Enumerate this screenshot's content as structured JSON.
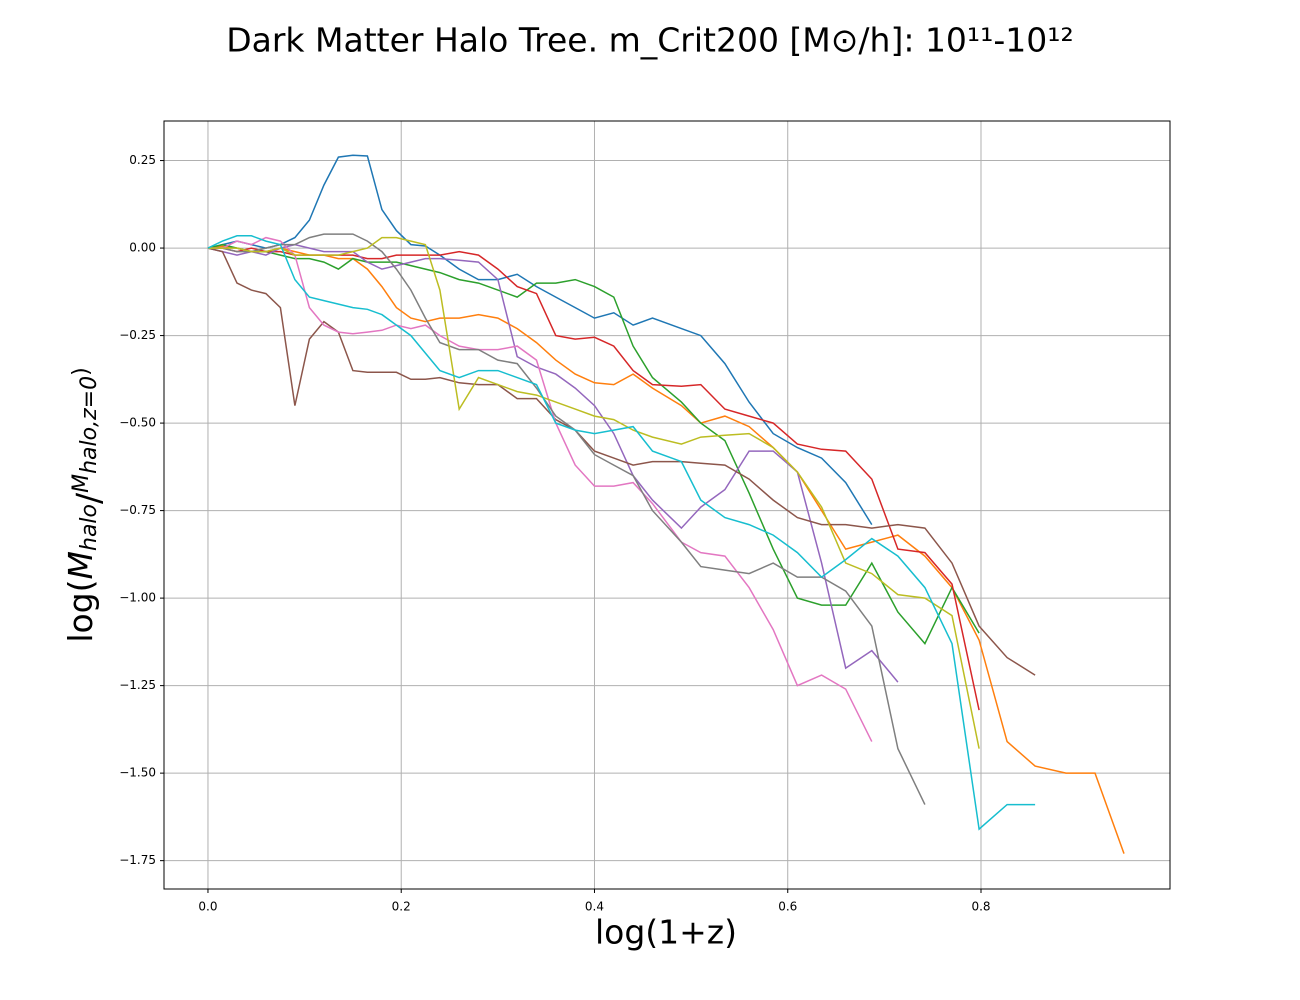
{
  "chart_data": {
    "type": "line",
    "title": "Dark Matter Halo Tree. m_Crit200 [M⊙/h]: 10¹¹-10¹²",
    "xlabel": "log(1+z)",
    "ylabel": "log(M_halo/M_halo,z=0)",
    "x": [
      0,
      0.015,
      0.03,
      0.045,
      0.06,
      0.075,
      0.09,
      0.105,
      0.12,
      0.135,
      0.15,
      0.165,
      0.18,
      0.195,
      0.21,
      0.225,
      0.24,
      0.26,
      0.28,
      0.3,
      0.32,
      0.34,
      0.36,
      0.38,
      0.4,
      0.42,
      0.44,
      0.46,
      0.49,
      0.51,
      0.535,
      0.56,
      0.585,
      0.61,
      0.635,
      0.66,
      0.687,
      0.714,
      0.742,
      0.77,
      0.798,
      0.827,
      0.856,
      0.888,
      0.918,
      0.948
    ],
    "series": [
      {
        "color": "#1f77b4",
        "values": [
          0,
          0.01,
          0.02,
          0.01,
          0,
          0.01,
          0.03,
          0.08,
          0.18,
          0.26,
          0.265,
          0.263,
          0.11,
          0.05,
          0.01,
          0.006,
          -0.02,
          -0.06,
          -0.09,
          -0.09,
          -0.075,
          -0.11,
          -0.14,
          -0.17,
          -0.2,
          -0.185,
          -0.22,
          -0.2,
          -0.23,
          -0.25,
          -0.33,
          -0.44,
          -0.53,
          -0.57,
          -0.6,
          -0.67,
          -0.79,
          null,
          null,
          null,
          null,
          null,
          null,
          null,
          null,
          null
        ]
      },
      {
        "color": "#ff7f0e",
        "values": [
          0,
          0.005,
          0,
          -0.01,
          -0.01,
          0,
          -0.01,
          -0.02,
          -0.02,
          -0.03,
          -0.03,
          -0.06,
          -0.11,
          -0.17,
          -0.2,
          -0.21,
          -0.2,
          -0.2,
          -0.19,
          -0.2,
          -0.23,
          -0.27,
          -0.32,
          -0.36,
          -0.385,
          -0.39,
          -0.36,
          -0.4,
          -0.45,
          -0.5,
          -0.48,
          -0.51,
          -0.57,
          -0.64,
          -0.75,
          -0.86,
          -0.84,
          -0.82,
          -0.88,
          -0.97,
          -1.12,
          -1.41,
          -1.48,
          -1.5,
          -1.5,
          -1.73
        ]
      },
      {
        "color": "#2ca02c",
        "values": [
          0,
          0.01,
          0,
          -0.01,
          -0.01,
          -0.02,
          -0.03,
          -0.03,
          -0.04,
          -0.06,
          -0.03,
          -0.04,
          -0.04,
          -0.04,
          -0.05,
          -0.06,
          -0.07,
          -0.09,
          -0.1,
          -0.12,
          -0.14,
          -0.1,
          -0.1,
          -0.09,
          -0.11,
          -0.14,
          -0.28,
          -0.37,
          -0.44,
          -0.5,
          -0.55,
          -0.7,
          -0.86,
          -1.0,
          -1.02,
          -1.02,
          -0.9,
          -1.04,
          -1.13,
          -0.97,
          -1.1,
          null,
          null,
          null,
          null,
          null
        ]
      },
      {
        "color": "#d62728",
        "values": [
          0,
          0,
          -0.01,
          0,
          -0.01,
          -0.01,
          -0.02,
          -0.02,
          -0.02,
          -0.02,
          -0.02,
          -0.03,
          -0.03,
          -0.02,
          -0.02,
          -0.02,
          -0.02,
          -0.01,
          -0.02,
          -0.06,
          -0.11,
          -0.13,
          -0.25,
          -0.26,
          -0.255,
          -0.28,
          -0.35,
          -0.39,
          -0.395,
          -0.39,
          -0.46,
          -0.48,
          -0.5,
          -0.56,
          -0.575,
          -0.58,
          -0.66,
          -0.86,
          -0.87,
          -0.96,
          -1.32,
          null,
          null,
          null,
          null,
          null
        ]
      },
      {
        "color": "#9467bd",
        "values": [
          0,
          -0.01,
          -0.02,
          -0.01,
          -0.02,
          0,
          0.01,
          0,
          -0.01,
          -0.01,
          -0.01,
          -0.04,
          -0.06,
          -0.05,
          -0.04,
          -0.03,
          -0.03,
          -0.035,
          -0.04,
          -0.09,
          -0.31,
          -0.34,
          -0.36,
          -0.4,
          -0.45,
          -0.53,
          -0.65,
          -0.72,
          -0.8,
          -0.74,
          -0.69,
          -0.58,
          -0.58,
          -0.64,
          -0.9,
          -1.2,
          -1.15,
          -1.24,
          null,
          null,
          null,
          null,
          null,
          null,
          null,
          null
        ]
      },
      {
        "color": "#8c564b",
        "values": [
          0,
          -0.01,
          -0.1,
          -0.12,
          -0.13,
          -0.17,
          -0.45,
          -0.26,
          -0.21,
          -0.24,
          -0.35,
          -0.355,
          -0.355,
          -0.355,
          -0.375,
          -0.375,
          -0.37,
          -0.385,
          -0.39,
          -0.39,
          -0.43,
          -0.43,
          -0.49,
          -0.52,
          -0.58,
          -0.6,
          -0.62,
          -0.61,
          -0.61,
          -0.615,
          -0.62,
          -0.66,
          -0.72,
          -0.77,
          -0.79,
          -0.79,
          -0.8,
          -0.79,
          -0.8,
          -0.9,
          -1.08,
          -1.17,
          -1.22,
          null,
          null,
          null
        ]
      },
      {
        "color": "#e377c2",
        "values": [
          0,
          0,
          0.02,
          0.01,
          0.03,
          0.02,
          -0.02,
          -0.17,
          -0.22,
          -0.24,
          -0.245,
          -0.24,
          -0.235,
          -0.22,
          -0.23,
          -0.22,
          -0.25,
          -0.28,
          -0.29,
          -0.29,
          -0.28,
          -0.32,
          -0.5,
          -0.62,
          -0.68,
          -0.68,
          -0.67,
          -0.73,
          -0.84,
          -0.87,
          -0.88,
          -0.97,
          -1.09,
          -1.25,
          -1.22,
          -1.26,
          -1.41,
          null,
          null,
          null,
          null,
          null,
          null,
          null,
          null,
          null
        ]
      },
      {
        "color": "#7f7f7f",
        "values": [
          0,
          0,
          -0.01,
          -0.01,
          0,
          0.01,
          0.01,
          0.03,
          0.04,
          0.04,
          0.04,
          0.02,
          -0.01,
          -0.06,
          -0.12,
          -0.2,
          -0.27,
          -0.29,
          -0.29,
          -0.32,
          -0.33,
          -0.4,
          -0.48,
          -0.52,
          -0.59,
          -0.62,
          -0.65,
          -0.75,
          -0.84,
          -0.91,
          -0.92,
          -0.93,
          -0.9,
          -0.94,
          -0.94,
          -0.98,
          -1.08,
          -1.43,
          -1.59,
          null,
          null,
          null,
          null,
          null,
          null,
          null
        ]
      },
      {
        "color": "#bcbd22",
        "values": [
          0,
          0,
          0,
          -0.01,
          -0.01,
          0,
          -0.02,
          -0.02,
          -0.02,
          -0.02,
          -0.01,
          0,
          0.03,
          0.03,
          0.02,
          0.01,
          -0.12,
          -0.46,
          -0.37,
          -0.39,
          -0.41,
          -0.42,
          -0.44,
          -0.46,
          -0.48,
          -0.49,
          -0.52,
          -0.54,
          -0.56,
          -0.54,
          -0.535,
          -0.53,
          -0.57,
          -0.64,
          -0.74,
          -0.9,
          -0.93,
          -0.99,
          -1.0,
          -1.05,
          -1.43,
          null,
          null,
          null,
          null,
          null
        ]
      },
      {
        "color": "#17becf",
        "values": [
          0,
          0.02,
          0.035,
          0.035,
          0.02,
          0.01,
          -0.09,
          -0.14,
          -0.15,
          -0.16,
          -0.17,
          -0.175,
          -0.19,
          -0.22,
          -0.25,
          -0.3,
          -0.35,
          -0.37,
          -0.35,
          -0.35,
          -0.37,
          -0.39,
          -0.5,
          -0.52,
          -0.53,
          -0.52,
          -0.51,
          -0.58,
          -0.61,
          -0.72,
          -0.77,
          -0.79,
          -0.82,
          -0.87,
          -0.94,
          -0.89,
          -0.83,
          -0.88,
          -0.97,
          -1.13,
          -1.66,
          -1.59,
          -1.59,
          null,
          null,
          null
        ]
      }
    ],
    "xlim": [
      -0.0455,
      0.9956
    ],
    "ylim": [
      -1.831,
      0.363
    ],
    "xticks": [
      {
        "value": 0,
        "label": "0.0"
      },
      {
        "value": 0.2,
        "label": "0.2"
      },
      {
        "value": 0.4,
        "label": "0.4"
      },
      {
        "value": 0.6,
        "label": "0.6"
      },
      {
        "value": 0.8,
        "label": "0.8"
      }
    ],
    "yticks": [
      {
        "value": 0.25,
        "label": "0.25"
      },
      {
        "value": 0,
        "label": "0.00"
      },
      {
        "value": -0.25,
        "label": "−0.25"
      },
      {
        "value": -0.5,
        "label": "−0.50"
      },
      {
        "value": -0.75,
        "label": "−0.75"
      },
      {
        "value": -1.0,
        "label": "−1.00"
      },
      {
        "value": -1.25,
        "label": "−1.25"
      },
      {
        "value": -1.5,
        "label": "−1.50"
      },
      {
        "value": -1.75,
        "label": "−1.75"
      }
    ],
    "grid": true
  }
}
